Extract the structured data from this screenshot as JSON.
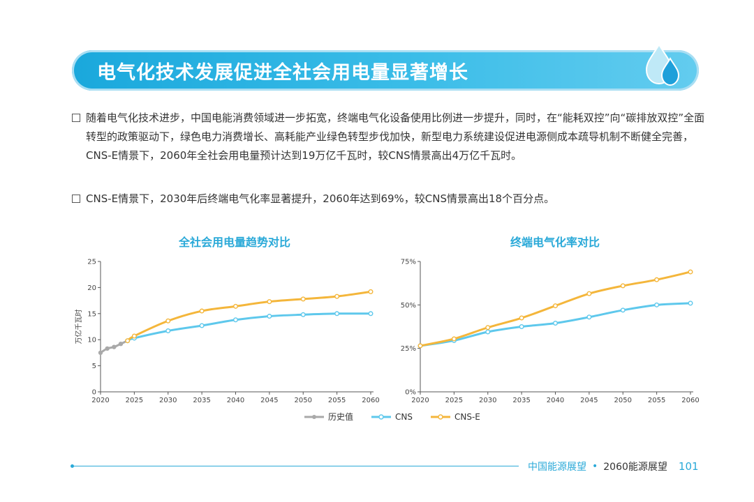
{
  "header": {
    "title": "电气化技术发展促进全社会用电量显著增长"
  },
  "bullets": [
    "随着电气化技术进步，中国电能消费领域进一步拓宽，终端电气化设备使用比例进一步提升，同时，在“能耗双控”向“碳排放双控”全面转型的政策驱动下，绿色电力消费增长、高耗能产业绿色转型步伐加快，新型电力系统建设促进电源侧成本疏导机制不断健全完善，CNS-E情景下，2060年全社会用电量预计达到19万亿千瓦时，较CNS情景高出4万亿千瓦时。",
    "CNS-E情景下，2030年后终端电气化率显著提升，2060年达到69%，较CNS情景高出18个百分点。"
  ],
  "legend": {
    "history": "历史值",
    "cns": "CNS",
    "cnse": "CNS-E"
  },
  "colors": {
    "history": "#a9a9a9",
    "cns": "#5ec8ec",
    "cnse": "#f4b63b",
    "accent": "#2aa9d8"
  },
  "footer": {
    "book1": "中国能源展望",
    "sep": "•",
    "book2": "2060能源展望",
    "page": "101"
  },
  "chart_data": [
    {
      "type": "line",
      "title": "全社会用电量趋势对比",
      "ylabel": "万亿千瓦时",
      "xlabel": "",
      "ylim": [
        0,
        25
      ],
      "yticks": [
        "0",
        "5",
        "10",
        "15",
        "20",
        "25"
      ],
      "ytick_values": [
        0,
        5,
        10,
        15,
        20,
        25
      ],
      "xticks": [
        2020,
        2025,
        2030,
        2035,
        2040,
        2045,
        2050,
        2055,
        2060
      ],
      "xlim": [
        2020,
        2060
      ],
      "series": [
        {
          "name": "历史值",
          "key": "history",
          "x": [
            2020,
            2021,
            2022,
            2023,
            2024
          ],
          "values": [
            7.5,
            8.3,
            8.6,
            9.2,
            9.8
          ]
        },
        {
          "name": "CNS",
          "key": "cns",
          "x": [
            2024,
            2025,
            2030,
            2035,
            2040,
            2045,
            2050,
            2055,
            2060
          ],
          "values": [
            9.8,
            10.3,
            11.7,
            12.7,
            13.8,
            14.5,
            14.8,
            15.0,
            15.0
          ]
        },
        {
          "name": "CNS-E",
          "key": "cnse",
          "x": [
            2024,
            2025,
            2030,
            2035,
            2040,
            2045,
            2050,
            2055,
            2060
          ],
          "values": [
            9.8,
            10.7,
            13.6,
            15.5,
            16.4,
            17.3,
            17.8,
            18.3,
            19.2
          ]
        }
      ]
    },
    {
      "type": "line",
      "title": "终端电气化率对比",
      "ylabel": "",
      "xlabel": "",
      "ylim": [
        0,
        75
      ],
      "yticks": [
        "0%",
        "25%",
        "50%",
        "75%"
      ],
      "ytick_values": [
        0,
        25,
        50,
        75
      ],
      "xticks": [
        2020,
        2025,
        2030,
        2035,
        2040,
        2045,
        2050,
        2055,
        2060
      ],
      "xlim": [
        2020,
        2060
      ],
      "series": [
        {
          "name": "CNS",
          "key": "cns",
          "x": [
            2020,
            2025,
            2030,
            2035,
            2040,
            2045,
            2050,
            2055,
            2060
          ],
          "values": [
            26.5,
            29.5,
            34.5,
            37.5,
            39.5,
            43.0,
            47.0,
            50.0,
            51.0
          ]
        },
        {
          "name": "CNS-E",
          "key": "cnse",
          "x": [
            2020,
            2025,
            2030,
            2035,
            2040,
            2045,
            2050,
            2055,
            2060
          ],
          "values": [
            26.5,
            30.5,
            37.0,
            42.5,
            49.5,
            56.5,
            61.0,
            64.5,
            69.0
          ]
        }
      ]
    }
  ]
}
